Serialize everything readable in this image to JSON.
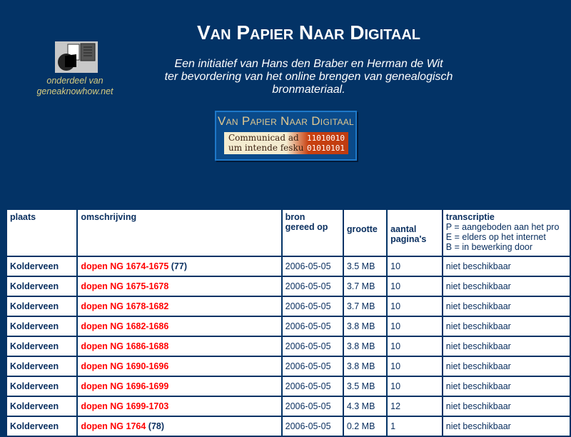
{
  "header": {
    "title": "Van Papier Naar Digitaal",
    "intro": [
      "Een initiatief van Hans den Braber en Herman de Wit",
      "ter bevordering van het online brengen van genealogisch",
      "bronmateriaal."
    ],
    "logo_caption": [
      "onderdeel van",
      "geneaknowhow.net"
    ],
    "banner": {
      "title": "Van Papier Naar Digitaal",
      "gothic": [
        "Communicad ad",
        "um intende fesku"
      ],
      "binary": [
        "11010010",
        "01010101"
      ]
    }
  },
  "table": {
    "headers": {
      "plaats": "plaats",
      "omschrijving": "omschrijving",
      "bron": [
        "bron",
        "gereed op"
      ],
      "grootte": "grootte",
      "pages": [
        "aantal",
        "pagina's"
      ],
      "transcriptie": "transcriptie",
      "legend": [
        "P = aangeboden aan het pro",
        "E = elders op het internet",
        "B = in bewerking door"
      ]
    },
    "rows": [
      {
        "plaats": "Kolderveen",
        "omschrijving": "dopen NG 1674-1675",
        "note": "(77)",
        "date": "2006-05-05",
        "size": "3.5 MB",
        "pages": "10",
        "trans": "niet beschikbaar"
      },
      {
        "plaats": "Kolderveen",
        "omschrijving": "dopen NG 1675-1678",
        "note": "",
        "date": "2006-05-05",
        "size": "3.7 MB",
        "pages": "10",
        "trans": "niet beschikbaar"
      },
      {
        "plaats": "Kolderveen",
        "omschrijving": "dopen NG 1678-1682",
        "note": "",
        "date": "2006-05-05",
        "size": "3.7 MB",
        "pages": "10",
        "trans": "niet beschikbaar"
      },
      {
        "plaats": "Kolderveen",
        "omschrijving": "dopen NG 1682-1686",
        "note": "",
        "date": "2006-05-05",
        "size": "3.8 MB",
        "pages": "10",
        "trans": "niet beschikbaar"
      },
      {
        "plaats": "Kolderveen",
        "omschrijving": "dopen NG 1686-1688",
        "note": "",
        "date": "2006-05-05",
        "size": "3.8 MB",
        "pages": "10",
        "trans": "niet beschikbaar"
      },
      {
        "plaats": "Kolderveen",
        "omschrijving": "dopen NG 1690-1696",
        "note": "",
        "date": "2006-05-05",
        "size": "3.8 MB",
        "pages": "10",
        "trans": "niet beschikbaar"
      },
      {
        "plaats": "Kolderveen",
        "omschrijving": "dopen NG 1696-1699",
        "note": "",
        "date": "2006-05-05",
        "size": "3.5 MB",
        "pages": "10",
        "trans": "niet beschikbaar"
      },
      {
        "plaats": "Kolderveen",
        "omschrijving": "dopen NG 1699-1703",
        "note": "",
        "date": "2006-05-05",
        "size": "4.3 MB",
        "pages": "12",
        "trans": "niet beschikbaar"
      },
      {
        "plaats": "Kolderveen",
        "omschrijving": "dopen NG 1764",
        "note": "(78)",
        "date": "2006-05-05",
        "size": "0.2 MB",
        "pages": "1",
        "trans": "niet beschikbaar"
      }
    ]
  }
}
